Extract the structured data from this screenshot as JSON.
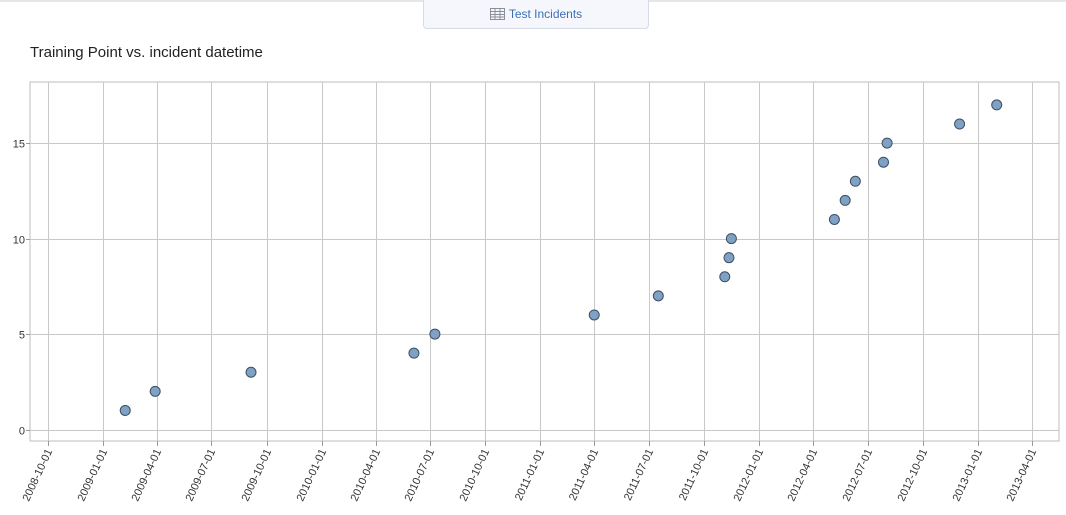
{
  "header": {
    "tab_label": "Test Incidents",
    "tab_icon": "table-grid-icon"
  },
  "chart_data": {
    "type": "scatter",
    "title": "Training Point vs. incident datetime",
    "xlabel": "",
    "ylabel": "",
    "x_axis_type": "date",
    "xlim": [
      "2008-09-01",
      "2013-05-16"
    ],
    "ylim": [
      -0.6,
      18.2
    ],
    "x_ticks": [
      "2008-10-01",
      "2009-01-01",
      "2009-04-01",
      "2009-07-01",
      "2009-10-01",
      "2010-01-01",
      "2010-04-01",
      "2010-07-01",
      "2010-10-01",
      "2011-01-01",
      "2011-04-01",
      "2011-07-01",
      "2011-10-01",
      "2012-01-01",
      "2012-04-01",
      "2012-07-01",
      "2012-10-01",
      "2013-01-01",
      "2013-04-01"
    ],
    "y_ticks": [
      0,
      5,
      10,
      15
    ],
    "grid": true,
    "point_color": "#7ea1c4",
    "point_stroke": "#3d4f63",
    "points": [
      {
        "x": "2009-02-07",
        "y": 1
      },
      {
        "x": "2009-03-29",
        "y": 2
      },
      {
        "x": "2009-09-05",
        "y": 3
      },
      {
        "x": "2010-06-04",
        "y": 4
      },
      {
        "x": "2010-07-09",
        "y": 5
      },
      {
        "x": "2011-04-01",
        "y": 6
      },
      {
        "x": "2011-07-17",
        "y": 7
      },
      {
        "x": "2011-11-05",
        "y": 8
      },
      {
        "x": "2011-11-12",
        "y": 9
      },
      {
        "x": "2011-11-16",
        "y": 10
      },
      {
        "x": "2012-05-06",
        "y": 11
      },
      {
        "x": "2012-05-24",
        "y": 12
      },
      {
        "x": "2012-06-10",
        "y": 13
      },
      {
        "x": "2012-07-27",
        "y": 14
      },
      {
        "x": "2012-08-02",
        "y": 15
      },
      {
        "x": "2012-12-01",
        "y": 16
      },
      {
        "x": "2013-02-01",
        "y": 17
      }
    ]
  }
}
